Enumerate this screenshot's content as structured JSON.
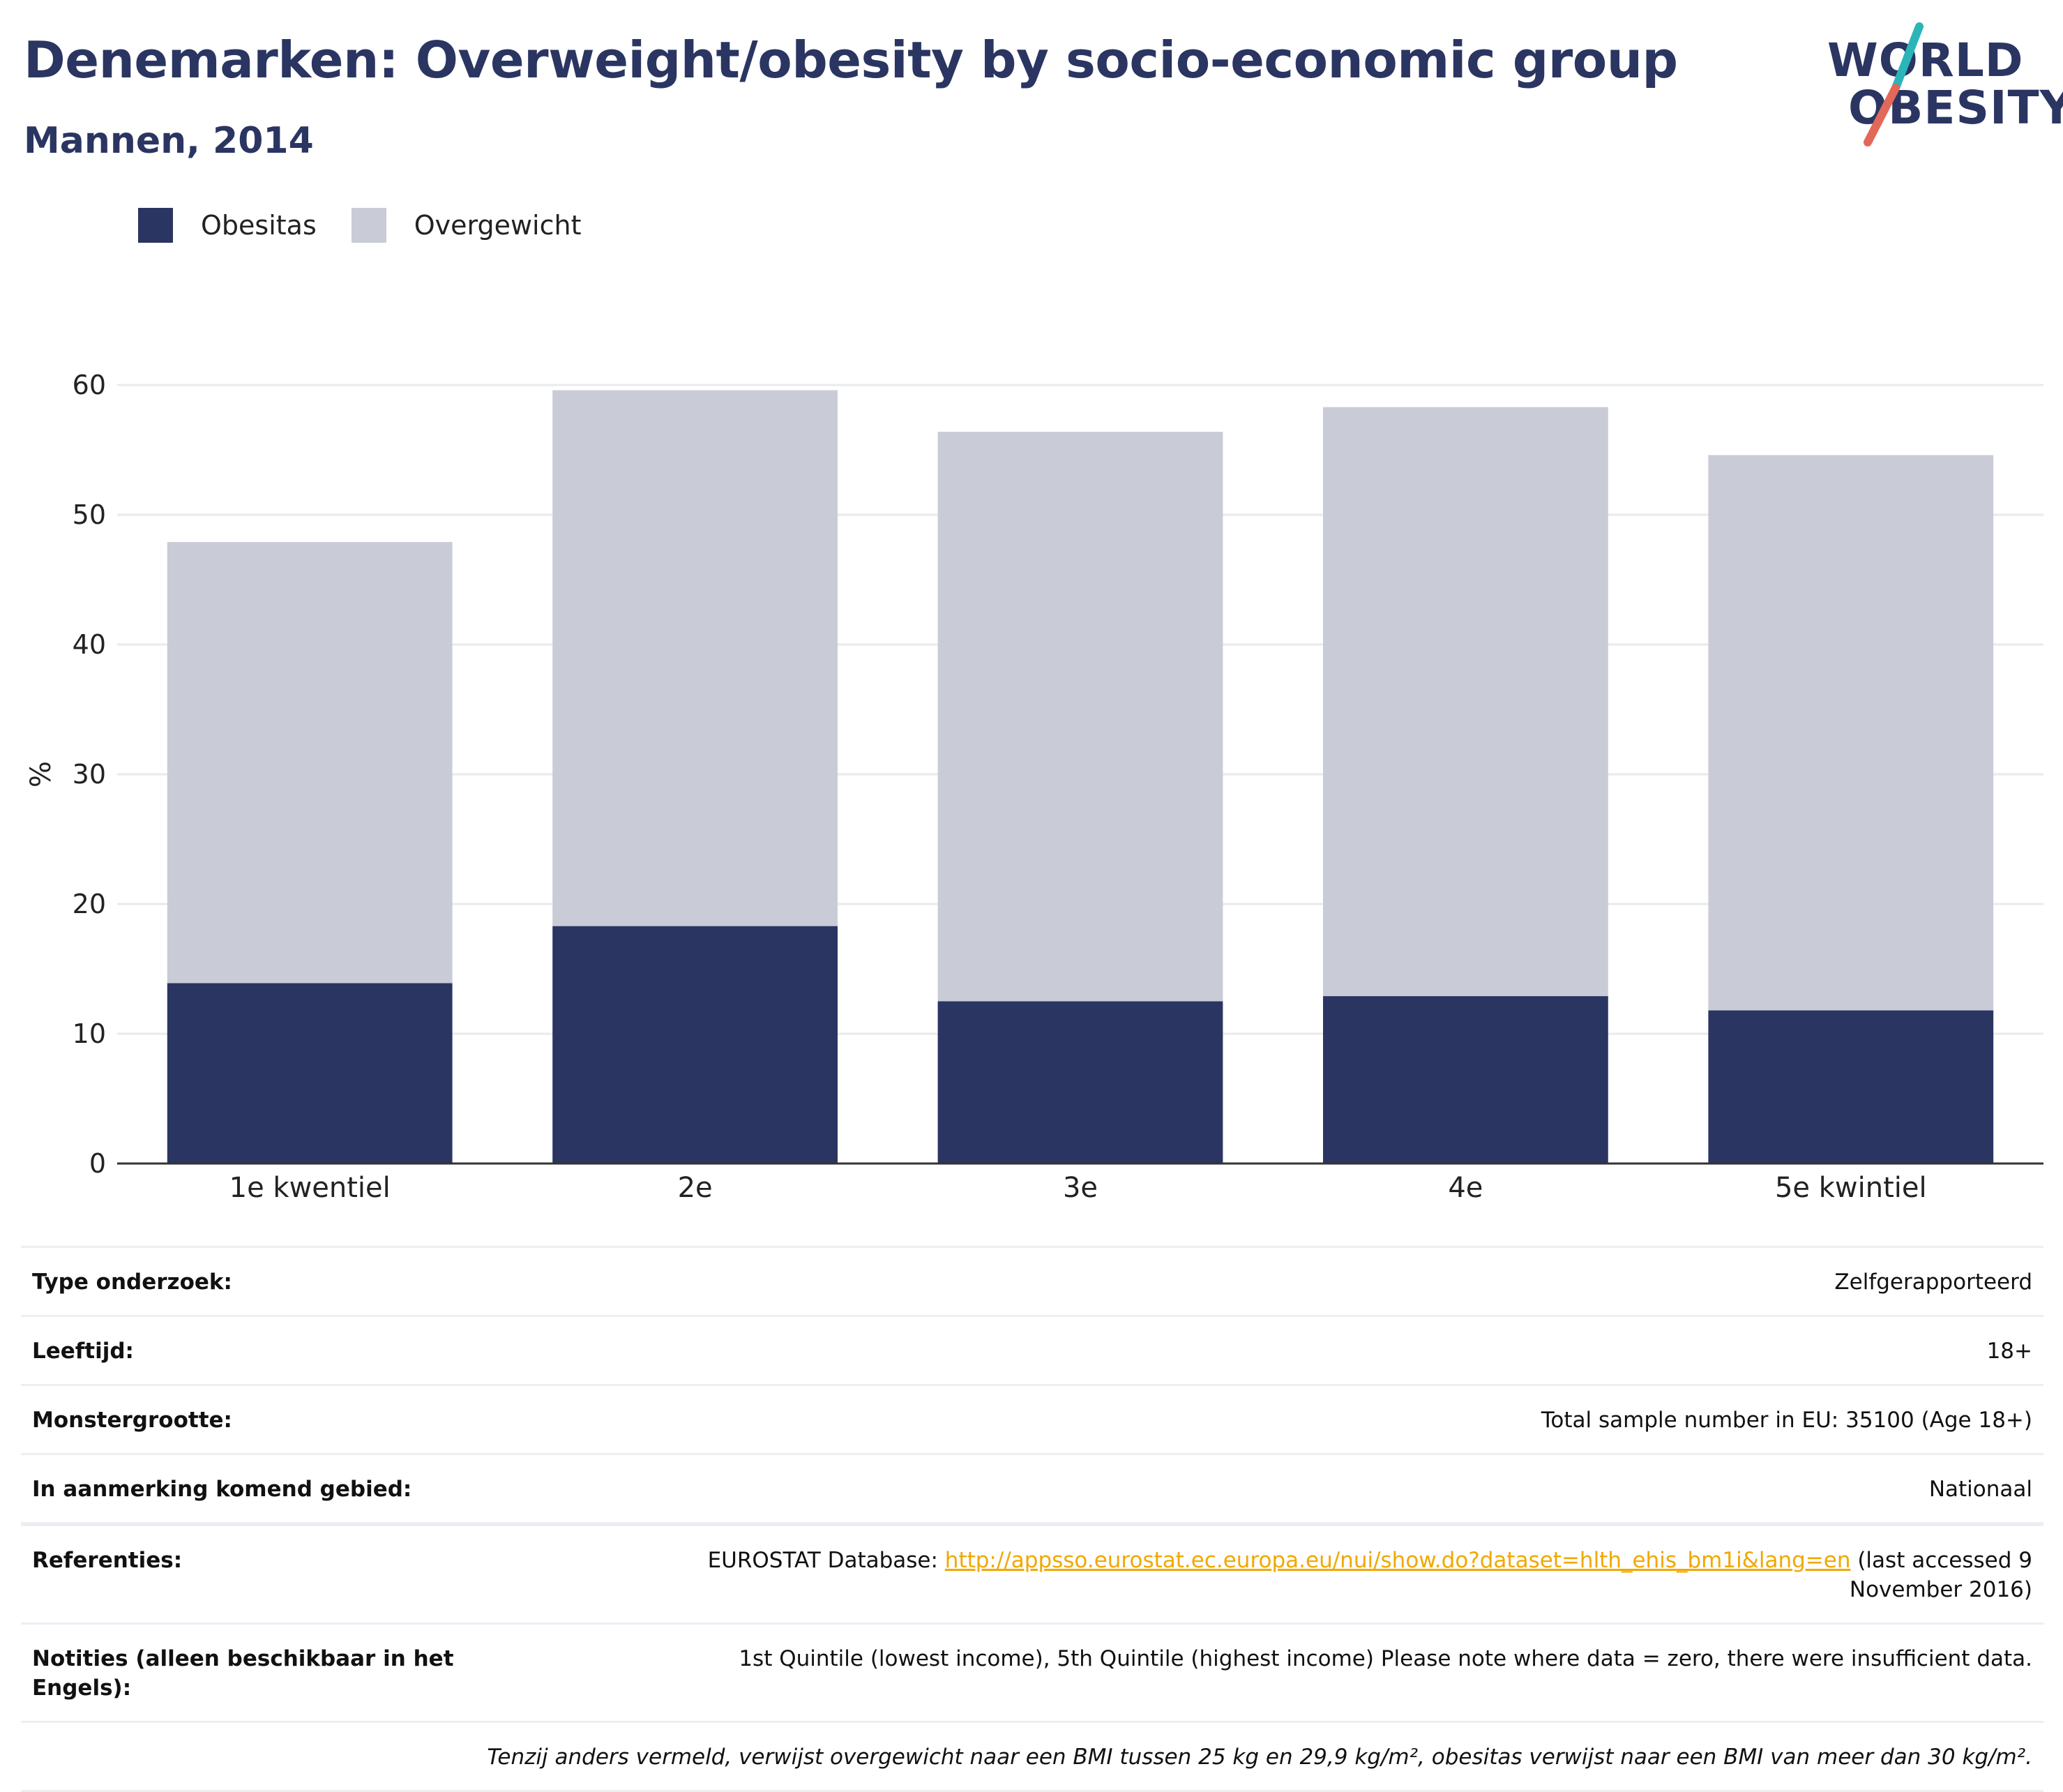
{
  "header": {
    "title": "Denemarken: Overweight/obesity by socio-economic group",
    "subtitle": "Mannen, 2014"
  },
  "logo": {
    "line1": "WORLD",
    "line2": "OBESITY",
    "accent_teal": "#2cb5b9",
    "accent_coral": "#e2685a"
  },
  "colors": {
    "obesitas": "#2a3562",
    "overgewicht": "#c9cbd6",
    "grid": "#e9eaee",
    "axis": "#333333"
  },
  "chart_data": {
    "type": "bar",
    "stacked": true,
    "categories": [
      "1e kwentiel",
      "2e",
      "3e",
      "4e",
      "5e kwintiel"
    ],
    "series": [
      {
        "name": "Obesitas",
        "values": [
          13.9,
          18.3,
          12.5,
          12.9,
          11.8
        ]
      },
      {
        "name": "Overgewicht",
        "values": [
          34.0,
          41.3,
          43.9,
          45.4,
          42.8
        ]
      }
    ],
    "ylabel": "%",
    "xlabel": "",
    "ylim": [
      0,
      60
    ],
    "yticks": [
      0,
      10,
      20,
      30,
      40,
      50,
      60
    ],
    "grid": true,
    "legend_position": "top-left"
  },
  "table": {
    "rows": [
      {
        "key": "Type onderzoek:",
        "value": "Zelfgerapporteerd"
      },
      {
        "key": "Leeftijd:",
        "value": "18+"
      },
      {
        "key": "Monstergrootte:",
        "value": "Total sample number in EU: 35100 (Age 18+)"
      },
      {
        "key": "In aanmerking komend gebied:",
        "value": "Nationaal"
      }
    ],
    "references": {
      "key": "Referenties:",
      "prefix": "EUROSTAT Database: ",
      "link": "http://appsso.eurostat.ec.europa.eu/nui/show.do?dataset=hlth_ehis_bm1i&lang=en",
      "suffix": " (last accessed 9 November 2016)"
    },
    "notes": {
      "key": "Notities (alleen beschikbaar in het Engels):",
      "value": "1st Quintile (lowest income), 5th Quintile (highest income) Please note where data = zero, there were insufficient data."
    },
    "footnote": "Tenzij anders vermeld, verwijst overgewicht naar een BMI tussen 25 kg en 29,9 kg/m², obesitas verwijst naar een BMI van meer dan 30 kg/m²."
  }
}
